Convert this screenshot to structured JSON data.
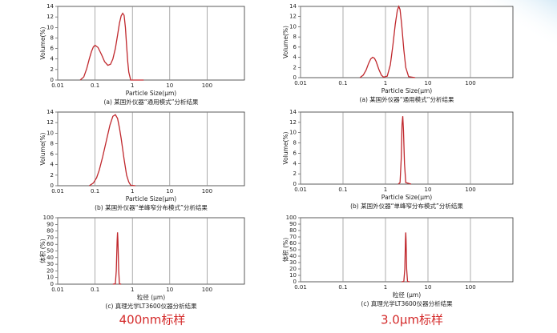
{
  "chart_data": [
    {
      "type": "line",
      "x_label": "Particle Size(μm)",
      "y_label": "Volume(%)",
      "caption": "(a) 某国外仪器“通用模式”分析结果",
      "log_x": true,
      "grid": true,
      "color": "#c0282d",
      "xlim": [
        0.01,
        1000
      ],
      "xticks": [
        0.01,
        0.1,
        1,
        10,
        100
      ],
      "ylim": [
        0,
        14
      ],
      "yticks": [
        0,
        2,
        4,
        6,
        8,
        10,
        12,
        14
      ],
      "x": [
        0.04,
        0.05,
        0.06,
        0.07,
        0.08,
        0.09,
        0.1,
        0.12,
        0.15,
        0.18,
        0.22,
        0.26,
        0.3,
        0.35,
        0.4,
        0.45,
        0.5,
        0.55,
        0.6,
        0.65,
        0.7,
        0.75,
        0.8,
        0.9,
        2
      ],
      "values": [
        0,
        0.6,
        2.2,
        4,
        5.4,
        6.3,
        6.6,
        6.2,
        4.8,
        3.5,
        2.8,
        3,
        4,
        6,
        8.5,
        10.8,
        12.2,
        12.7,
        12.3,
        10,
        6.5,
        3.5,
        1.5,
        0,
        0
      ]
    },
    {
      "type": "line",
      "x_label": "Particle Size(μm)",
      "y_label": "Volume(%)",
      "caption": "(a) 某国外仪器“通用模式”分析结果",
      "log_x": true,
      "grid": true,
      "color": "#c0282d",
      "xlim": [
        0.01,
        1000
      ],
      "xticks": [
        0.01,
        0.1,
        1,
        10,
        100
      ],
      "ylim": [
        0,
        14
      ],
      "yticks": [
        0,
        2,
        4,
        6,
        8,
        10,
        12,
        14
      ],
      "x": [
        0.25,
        0.3,
        0.35,
        0.4,
        0.45,
        0.5,
        0.55,
        0.6,
        0.7,
        0.8,
        0.9,
        1.1,
        1.3,
        1.5,
        1.7,
        1.9,
        2.05,
        2.2,
        2.4,
        2.7,
        3,
        3.5,
        5
      ],
      "values": [
        0,
        0.5,
        1.5,
        2.8,
        3.7,
        4,
        3.8,
        3.2,
        1.6,
        0.5,
        0.1,
        0.3,
        2.5,
        6.5,
        10.5,
        13.2,
        14,
        13.4,
        10.5,
        5.5,
        2,
        0.2,
        0
      ]
    },
    {
      "type": "line",
      "x_label": "Particle Size(μm)",
      "y_label": "Volume(%)",
      "caption": "(b) 某国外仪器“单峰窄分布模式”分析结果",
      "log_x": true,
      "grid": true,
      "color": "#c0282d",
      "xlim": [
        0.01,
        1000
      ],
      "xticks": [
        0.01,
        0.1,
        1,
        10,
        100
      ],
      "ylim": [
        0,
        14
      ],
      "yticks": [
        0,
        2,
        4,
        6,
        8,
        10,
        12,
        14
      ],
      "x": [
        0.07,
        0.09,
        0.11,
        0.13,
        0.16,
        0.2,
        0.25,
        0.3,
        0.35,
        0.4,
        0.45,
        0.5,
        0.6,
        0.7,
        0.8,
        0.9,
        1.2
      ],
      "values": [
        0,
        0.5,
        1.5,
        3,
        5.5,
        8.5,
        11.5,
        13.2,
        13.5,
        12.8,
        11,
        9,
        5,
        2,
        0.7,
        0.1,
        0
      ]
    },
    {
      "type": "line",
      "x_label": "Particle Size(μm)",
      "y_label": "Volume(%)",
      "caption": "(b) 某国外仪器“单峰窄分布模式”分析结果",
      "log_x": true,
      "grid": true,
      "color": "#c0282d",
      "xlim": [
        0.01,
        1000
      ],
      "xticks": [
        0.01,
        0.1,
        1,
        10,
        100
      ],
      "ylim": [
        0,
        14
      ],
      "yticks": [
        0,
        2,
        4,
        6,
        8,
        10,
        12,
        14
      ],
      "x": [
        2,
        2.2,
        2.35,
        2.45,
        2.55,
        2.65,
        2.8,
        3,
        4
      ],
      "values": [
        0,
        0.3,
        5,
        11.5,
        13.2,
        10.5,
        4,
        0.3,
        0
      ]
    },
    {
      "type": "line",
      "x_label": "粒径 (μm)",
      "y_label": "体积 (%)",
      "caption": "(c) 真理光学LT3600仪器分析结果",
      "log_x": true,
      "grid": true,
      "color": "#c0282d",
      "xlim": [
        0.01,
        1000
      ],
      "xticks": [
        0.01,
        0.1,
        1,
        10,
        100
      ],
      "ylim": [
        0,
        100
      ],
      "yticks": [
        0,
        10,
        20,
        30,
        40,
        50,
        60,
        70,
        80,
        90,
        100
      ],
      "x": [
        0.3,
        0.35,
        0.37,
        0.39,
        0.4,
        0.41,
        0.43,
        0.45,
        0.5
      ],
      "values": [
        0,
        0.5,
        20,
        65,
        78,
        65,
        20,
        0.5,
        0
      ]
    },
    {
      "type": "line",
      "x_label": "粒径 (μm)",
      "y_label": "体积 (%)",
      "caption": "(c) 真理光学LT3600仪器分析结果",
      "log_x": true,
      "grid": true,
      "color": "#c0282d",
      "xlim": [
        0.01,
        1000
      ],
      "xticks": [
        0.01,
        0.1,
        1,
        10,
        100
      ],
      "ylim": [
        0,
        100
      ],
      "yticks": [
        0,
        10,
        20,
        30,
        40,
        50,
        60,
        70,
        80,
        90,
        100
      ],
      "x": [
        2.4,
        2.7,
        2.85,
        2.95,
        3,
        3.05,
        3.15,
        3.3,
        3.7
      ],
      "values": [
        0,
        0.5,
        20,
        65,
        77,
        65,
        20,
        0.5,
        0
      ]
    }
  ],
  "footer_labels": [
    "400nm标样",
    "3.0μm标样"
  ]
}
